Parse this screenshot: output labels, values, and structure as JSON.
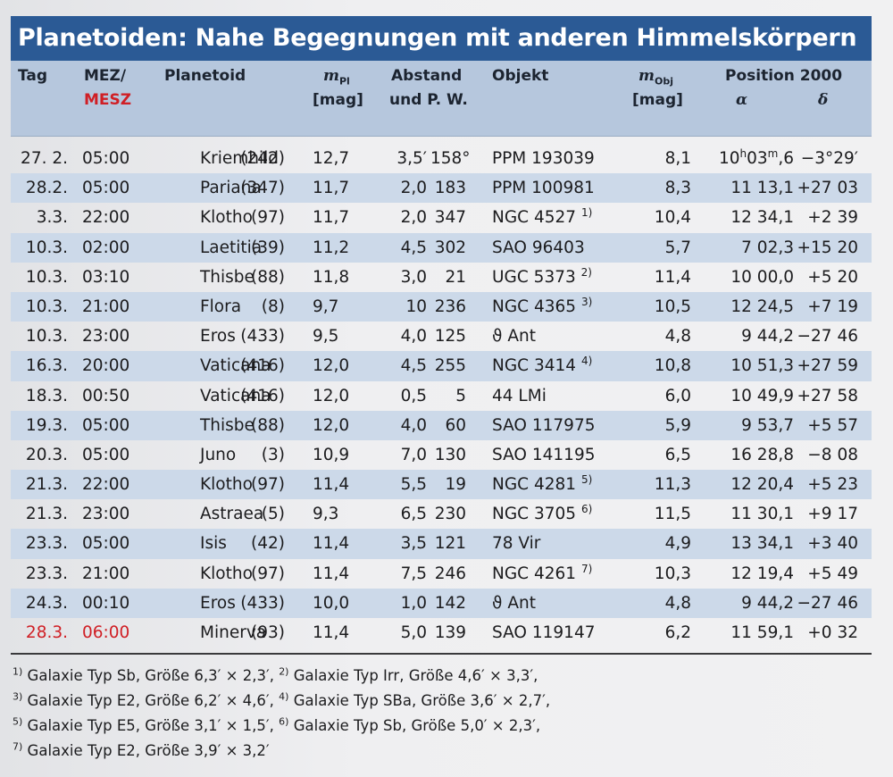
{
  "title": "Planetoiden: Nahe Begegnungen mit anderen Himmelskörpern",
  "header": {
    "tag": "Tag",
    "mez": "MEZ/",
    "mesz": "MESZ",
    "planetoid": "Planetoid",
    "mpl_m": "m",
    "mpl_sub": "Pl",
    "mpl_unit": "[mag]",
    "abstand_1": "Abstand",
    "abstand_2": "und P. W.",
    "objekt": "Objekt",
    "mobj_m": "m",
    "mobj_sub": "Obj",
    "mobj_unit": "[mag]",
    "position": "Position 2000",
    "alpha": "α",
    "delta": "δ"
  },
  "rows": [
    {
      "tag": "27. 2.",
      "time": "05:00",
      "num": "(242)",
      "name": "Kriemhild",
      "mpl": "12,7",
      "ab": "3,5′",
      "pw": "158°",
      "obj": "PPM 193039",
      "note": "",
      "mobj": "8,1",
      "ra_h": "10",
      "ra_hu": "h",
      "ra_m": "03",
      "ra_mu": "m",
      "ra_d": ",6",
      "dec": "−3°29′"
    },
    {
      "tag": "28.2.",
      "time": "05:00",
      "num": "(347)",
      "name": "Pariana",
      "mpl": "11,7",
      "ab": "2,0",
      "pw": "183",
      "obj": "PPM 100981",
      "note": "",
      "mobj": "8,3",
      "ra_h": "11",
      "ra_hu": "",
      "ra_m": " 13",
      "ra_mu": "",
      "ra_d": ",1",
      "dec": "+27 03"
    },
    {
      "tag": "3.3.",
      "time": "22:00",
      "num": "(97)",
      "name": "Klotho",
      "mpl": "11,7",
      "ab": "2,0",
      "pw": "347",
      "obj": "NGC 4527",
      "note": "1)",
      "mobj": "10,4",
      "ra_h": "12",
      "ra_hu": "",
      "ra_m": " 34",
      "ra_mu": "",
      "ra_d": ",1",
      "dec": "+2 39"
    },
    {
      "tag": "10.3.",
      "time": "02:00",
      "num": "(39)",
      "name": "Laetitia",
      "mpl": "11,2",
      "ab": "4,5",
      "pw": "302",
      "obj": "SAO 96403",
      "note": "",
      "mobj": "5,7",
      "ra_h": "7",
      "ra_hu": "",
      "ra_m": " 02",
      "ra_mu": "",
      "ra_d": ",3",
      "dec": "+15 20"
    },
    {
      "tag": "10.3.",
      "time": "03:10",
      "num": "(88)",
      "name": "Thisbe",
      "mpl": "11,8",
      "ab": "3,0",
      "pw": "21",
      "obj": "UGC 5373",
      "note": "2)",
      "mobj": "11,4",
      "ra_h": "10",
      "ra_hu": "",
      "ra_m": " 00",
      "ra_mu": "",
      "ra_d": ",0",
      "dec": "+5 20"
    },
    {
      "tag": "10.3.",
      "time": "21:00",
      "num": "(8)",
      "name": "Flora",
      "mpl": "9,7",
      "ab": "10",
      "pw": "236",
      "obj": "NGC 4365",
      "note": "3)",
      "mobj": "10,5",
      "ra_h": "12",
      "ra_hu": "",
      "ra_m": " 24",
      "ra_mu": "",
      "ra_d": ",5",
      "dec": "+7 19"
    },
    {
      "tag": "10.3.",
      "time": "23:00",
      "num": "(433)",
      "name": "Eros",
      "mpl": "9,5",
      "ab": "4,0",
      "pw": "125",
      "obj": "ϑ Ant",
      "note": "",
      "mobj": "4,8",
      "ra_h": "9",
      "ra_hu": "",
      "ra_m": " 44",
      "ra_mu": "",
      "ra_d": ",2",
      "dec": "−27 46"
    },
    {
      "tag": "16.3.",
      "time": "20:00",
      "num": "(416)",
      "name": "Vaticana",
      "mpl": "12,0",
      "ab": "4,5",
      "pw": "255",
      "obj": "NGC 3414",
      "note": "4)",
      "mobj": "10,8",
      "ra_h": "10",
      "ra_hu": "",
      "ra_m": " 51",
      "ra_mu": "",
      "ra_d": ",3",
      "dec": "+27 59"
    },
    {
      "tag": "18.3.",
      "time": "00:50",
      "num": "(416)",
      "name": "Vaticana",
      "mpl": "12,0",
      "ab": "0,5",
      "pw": "5",
      "obj": "44 LMi",
      "note": "",
      "mobj": "6,0",
      "ra_h": "10",
      "ra_hu": "",
      "ra_m": " 49",
      "ra_mu": "",
      "ra_d": ",9",
      "dec": "+27 58"
    },
    {
      "tag": "19.3.",
      "time": "05:00",
      "num": "(88)",
      "name": "Thisbe",
      "mpl": "12,0",
      "ab": "4,0",
      "pw": "60",
      "obj": "SAO 117975",
      "note": "",
      "mobj": "5,9",
      "ra_h": "9",
      "ra_hu": "",
      "ra_m": " 53",
      "ra_mu": "",
      "ra_d": ",7",
      "dec": "+5 57"
    },
    {
      "tag": "20.3.",
      "time": "05:00",
      "num": "(3)",
      "name": "Juno",
      "mpl": "10,9",
      "ab": "7,0",
      "pw": "130",
      "obj": "SAO 141195",
      "note": "",
      "mobj": "6,5",
      "ra_h": "16",
      "ra_hu": "",
      "ra_m": " 28",
      "ra_mu": "",
      "ra_d": ",8",
      "dec": "−8 08"
    },
    {
      "tag": "21.3.",
      "time": "22:00",
      "num": "(97)",
      "name": "Klotho",
      "mpl": "11,4",
      "ab": "5,5",
      "pw": "19",
      "obj": "NGC 4281",
      "note": "5)",
      "mobj": "11,3",
      "ra_h": "12",
      "ra_hu": "",
      "ra_m": " 20",
      "ra_mu": "",
      "ra_d": ",4",
      "dec": "+5 23"
    },
    {
      "tag": "21.3.",
      "time": "23:00",
      "num": "(5)",
      "name": "Astraea",
      "mpl": "9,3",
      "ab": "6,5",
      "pw": "230",
      "obj": "NGC 3705",
      "note": "6)",
      "mobj": "11,5",
      "ra_h": "11",
      "ra_hu": "",
      "ra_m": " 30",
      "ra_mu": "",
      "ra_d": ",1",
      "dec": "+9 17"
    },
    {
      "tag": "23.3.",
      "time": "05:00",
      "num": "(42)",
      "name": "Isis",
      "mpl": "11,4",
      "ab": "3,5",
      "pw": "121",
      "obj": "78 Vir",
      "note": "",
      "mobj": "4,9",
      "ra_h": "13",
      "ra_hu": "",
      "ra_m": " 34",
      "ra_mu": "",
      "ra_d": ",1",
      "dec": "+3 40"
    },
    {
      "tag": "23.3.",
      "time": "21:00",
      "num": "(97)",
      "name": "Klotho",
      "mpl": "11,4",
      "ab": "7,5",
      "pw": "246",
      "obj": "NGC 4261",
      "note": "7)",
      "mobj": "10,3",
      "ra_h": "12",
      "ra_hu": "",
      "ra_m": " 19",
      "ra_mu": "",
      "ra_d": ",4",
      "dec": "+5 49"
    },
    {
      "tag": "24.3.",
      "time": "00:10",
      "num": "(433)",
      "name": "Eros",
      "mpl": "10,0",
      "ab": "1,0",
      "pw": "142",
      "obj": "ϑ Ant",
      "note": "",
      "mobj": "4,8",
      "ra_h": "9",
      "ra_hu": "",
      "ra_m": " 44",
      "ra_mu": "",
      "ra_d": ",2",
      "dec": "−27 46"
    },
    {
      "tag": "28.3.",
      "time": "06:00",
      "num": "(93)",
      "name": "Minerva",
      "mpl": "11,4",
      "ab": "5,0",
      "pw": "139",
      "obj": "SAO 119147",
      "note": "",
      "mobj": "6,2",
      "ra_h": "11",
      "ra_hu": "",
      "ra_m": " 59",
      "ra_mu": "",
      "ra_d": ",1",
      "dec": "+0 32",
      "highlight": true
    }
  ],
  "footnotes": [
    [
      {
        "n": "1)",
        "text": " Galaxie Typ Sb, Größe 6,3′ × 2,3′,"
      },
      {
        "n": "2)",
        "text": " Galaxie Typ Irr, Größe 4,6′ × 3,3′,"
      }
    ],
    [
      {
        "n": "3)",
        "text": " Galaxie Typ E2, Größe 6,2′ × 4,6′,"
      },
      {
        "n": "4)",
        "text": " Galaxie Typ SBa, Größe 3,6′ × 2,7′,"
      }
    ],
    [
      {
        "n": "5)",
        "text": " Galaxie Typ E5, Größe 3,1′ × 1,5′,"
      },
      {
        "n": "6)",
        "text": " Galaxie Typ Sb, Größe 5,0′ × 2,3′,"
      }
    ],
    [
      {
        "n": "7)",
        "text": " Galaxie Typ E2, Größe 3,9′ × 3,2′"
      }
    ]
  ],
  "colors": {
    "title_bar": "#2b5a95",
    "header_bg": "#b6c7dd",
    "alt_row": "#ccd9e9",
    "highlight_red": "#d01f25"
  }
}
